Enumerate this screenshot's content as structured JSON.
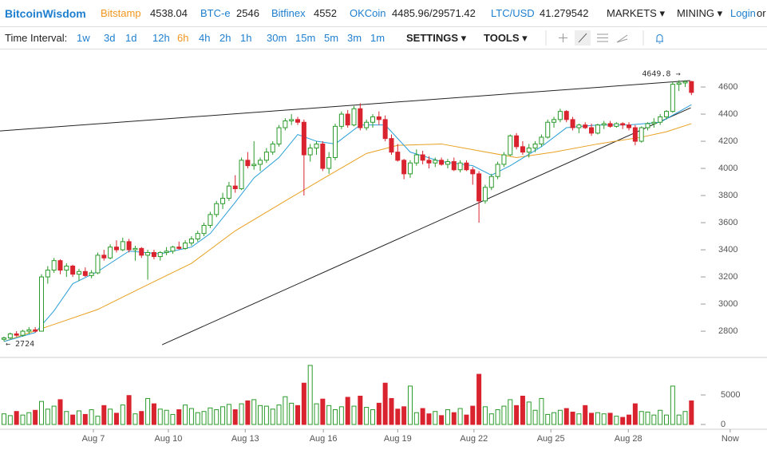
{
  "header": {
    "logo": "BitcoinWisdom",
    "markets": [
      {
        "name": "Bitstamp",
        "price": "4538.04"
      },
      {
        "name": "BTC-e",
        "price": "2546"
      },
      {
        "name": "Bitfinex",
        "price": "4552"
      },
      {
        "name": "OKCoin",
        "price": "4485.96/29571.42"
      },
      {
        "name": "LTC/USD",
        "price": "41.279542"
      }
    ],
    "menu": [
      "MARKETS",
      "MINING",
      "Login",
      "or"
    ]
  },
  "toolbar": {
    "label": "Time Interval:",
    "intervals": [
      "1w",
      "3d",
      "1d",
      "12h",
      "6h",
      "4h",
      "2h",
      "1h",
      "30m",
      "15m",
      "5m",
      "3m",
      "1m"
    ],
    "active": "6h",
    "settings": "SETTINGS",
    "tools": "TOOLS"
  },
  "chart_data": {
    "type": "candlestick",
    "up_color": "#2a9a2a",
    "down_color": "#d9232e",
    "xlim": [
      -0.64,
      122.09
    ],
    "ylim": [
      2624,
      4859
    ],
    "yticks": [
      2800,
      3000,
      3200,
      3400,
      3600,
      3800,
      4000,
      4200,
      4400,
      4600
    ],
    "xticks": [
      {
        "value": 14.3,
        "label": "Aug 7"
      },
      {
        "value": 26.3,
        "label": "Aug 10"
      },
      {
        "value": 38.6,
        "label": "Aug 13"
      },
      {
        "value": 51.1,
        "label": "Aug 16"
      },
      {
        "value": 63.0,
        "label": "Aug 19"
      },
      {
        "value": 75.2,
        "label": "Aug 22"
      },
      {
        "value": 87.5,
        "label": "Aug 25"
      },
      {
        "value": 99.9,
        "label": "Aug 28"
      },
      {
        "value": 116.2,
        "label": "Now"
      }
    ],
    "candles": [
      [
        2740,
        2760,
        2724,
        2750
      ],
      [
        2750,
        2790,
        2740,
        2780
      ],
      [
        2780,
        2800,
        2760,
        2770
      ],
      [
        2770,
        2810,
        2760,
        2800
      ],
      [
        2800,
        2830,
        2780,
        2810
      ],
      [
        2810,
        2830,
        2790,
        2800
      ],
      [
        2800,
        3220,
        2800,
        3200
      ],
      [
        3200,
        3280,
        3150,
        3250
      ],
      [
        3250,
        3340,
        3230,
        3320
      ],
      [
        3320,
        3330,
        3220,
        3250
      ],
      [
        3250,
        3300,
        3200,
        3280
      ],
      [
        3280,
        3290,
        3200,
        3220
      ],
      [
        3220,
        3260,
        3170,
        3240
      ],
      [
        3240,
        3270,
        3200,
        3210
      ],
      [
        3210,
        3250,
        3190,
        3230
      ],
      [
        3230,
        3380,
        3220,
        3360
      ],
      [
        3360,
        3400,
        3320,
        3340
      ],
      [
        3340,
        3440,
        3330,
        3420
      ],
      [
        3420,
        3470,
        3380,
        3400
      ],
      [
        3400,
        3490,
        3390,
        3460
      ],
      [
        3460,
        3480,
        3380,
        3400
      ],
      [
        3400,
        3430,
        3320,
        3410
      ],
      [
        3410,
        3420,
        3340,
        3360
      ],
      [
        3360,
        3400,
        3180,
        3380
      ],
      [
        3380,
        3400,
        3330,
        3350
      ],
      [
        3350,
        3390,
        3320,
        3380
      ],
      [
        3380,
        3420,
        3360,
        3390
      ],
      [
        3390,
        3430,
        3370,
        3420
      ],
      [
        3420,
        3460,
        3400,
        3410
      ],
      [
        3410,
        3470,
        3400,
        3450
      ],
      [
        3450,
        3500,
        3430,
        3480
      ],
      [
        3480,
        3540,
        3460,
        3520
      ],
      [
        3520,
        3600,
        3500,
        3580
      ],
      [
        3580,
        3680,
        3560,
        3660
      ],
      [
        3660,
        3760,
        3640,
        3740
      ],
      [
        3740,
        3820,
        3700,
        3780
      ],
      [
        3780,
        3900,
        3760,
        3870
      ],
      [
        3870,
        3950,
        3820,
        3850
      ],
      [
        3850,
        4080,
        3840,
        4060
      ],
      [
        4060,
        4120,
        4000,
        4020
      ],
      [
        4020,
        4200,
        3990,
        4030
      ],
      [
        4030,
        4080,
        3980,
        4060
      ],
      [
        4060,
        4150,
        4040,
        4120
      ],
      [
        4120,
        4200,
        4100,
        4180
      ],
      [
        4180,
        4320,
        4160,
        4300
      ],
      [
        4300,
        4370,
        4280,
        4350
      ],
      [
        4350,
        4400,
        4320,
        4360
      ],
      [
        4360,
        4380,
        4320,
        4340
      ],
      [
        4340,
        4360,
        3800,
        4100
      ],
      [
        4100,
        4180,
        4050,
        4150
      ],
      [
        4150,
        4200,
        4100,
        4180
      ],
      [
        4180,
        4200,
        3980,
        4000
      ],
      [
        4000,
        4120,
        3960,
        4080
      ],
      [
        4080,
        4330,
        4060,
        4310
      ],
      [
        4310,
        4420,
        4290,
        4400
      ],
      [
        4400,
        4430,
        4300,
        4320
      ],
      [
        4320,
        4460,
        4310,
        4440
      ],
      [
        4440,
        4480,
        4280,
        4300
      ],
      [
        4300,
        4360,
        4280,
        4340
      ],
      [
        4340,
        4400,
        4300,
        4380
      ],
      [
        4380,
        4420,
        4320,
        4360
      ],
      [
        4360,
        4390,
        4200,
        4220
      ],
      [
        4220,
        4250,
        4100,
        4120
      ],
      [
        4120,
        4180,
        4050,
        4060
      ],
      [
        4060,
        4070,
        3920,
        3960
      ],
      [
        3960,
        4060,
        3930,
        4040
      ],
      [
        4040,
        4140,
        4020,
        4100
      ],
      [
        4100,
        4130,
        4030,
        4060
      ],
      [
        4060,
        4090,
        4000,
        4040
      ],
      [
        4040,
        4080,
        4010,
        4060
      ],
      [
        4060,
        4080,
        4020,
        4030
      ],
      [
        4030,
        4070,
        4000,
        4050
      ],
      [
        4050,
        4080,
        3980,
        3990
      ],
      [
        3990,
        4060,
        3970,
        4040
      ],
      [
        4040,
        4060,
        3980,
        3990
      ],
      [
        3990,
        4010,
        3880,
        3960
      ],
      [
        3960,
        3980,
        3600,
        3760
      ],
      [
        3760,
        3880,
        3740,
        3860
      ],
      [
        3860,
        3960,
        3840,
        3940
      ],
      [
        3940,
        4050,
        3920,
        4030
      ],
      [
        4030,
        4120,
        4010,
        4100
      ],
      [
        4100,
        4250,
        4090,
        4240
      ],
      [
        4240,
        4260,
        4140,
        4160
      ],
      [
        4160,
        4200,
        4100,
        4120
      ],
      [
        4120,
        4180,
        4080,
        4150
      ],
      [
        4150,
        4200,
        4120,
        4180
      ],
      [
        4180,
        4250,
        4160,
        4230
      ],
      [
        4230,
        4360,
        4220,
        4340
      ],
      [
        4340,
        4380,
        4300,
        4360
      ],
      [
        4360,
        4440,
        4340,
        4420
      ],
      [
        4420,
        4430,
        4340,
        4360
      ],
      [
        4360,
        4380,
        4280,
        4300
      ],
      [
        4300,
        4330,
        4260,
        4320
      ],
      [
        4320,
        4340,
        4290,
        4300
      ],
      [
        4300,
        4330,
        4240,
        4260
      ],
      [
        4260,
        4330,
        4250,
        4320
      ],
      [
        4320,
        4350,
        4290,
        4330
      ],
      [
        4330,
        4350,
        4300,
        4310
      ],
      [
        4310,
        4340,
        4300,
        4330
      ],
      [
        4330,
        4340,
        4290,
        4320
      ],
      [
        4320,
        4340,
        4280,
        4300
      ],
      [
        4300,
        4320,
        4170,
        4200
      ],
      [
        4200,
        4310,
        4190,
        4300
      ],
      [
        4300,
        4340,
        4280,
        4330
      ],
      [
        4330,
        4370,
        4300,
        4340
      ],
      [
        4340,
        4400,
        4320,
        4380
      ],
      [
        4380,
        4430,
        4360,
        4420
      ],
      [
        4420,
        4640,
        4410,
        4620
      ],
      [
        4620,
        4650,
        4570,
        4630
      ],
      [
        4630,
        4649.8,
        4600,
        4640
      ],
      [
        4640,
        4645,
        4540,
        4560
      ]
    ],
    "volume": [
      1800,
      1500,
      2200,
      1600,
      2000,
      2400,
      3900,
      2600,
      3100,
      4200,
      2200,
      1600,
      2300,
      1700,
      2500,
      1400,
      3200,
      2600,
      1900,
      3300,
      4900,
      1800,
      2200,
      4400,
      3500,
      2600,
      2400,
      1700,
      2500,
      3300,
      2700,
      2000,
      2200,
      2800,
      2500,
      3000,
      3400,
      2500,
      3500,
      4000,
      4200,
      3200,
      3100,
      2600,
      3300,
      4700,
      3600,
      3200,
      7000,
      10000,
      3500,
      4300,
      3200,
      2500,
      3000,
      4600,
      3100,
      4800,
      2900,
      2500,
      3600,
      7000,
      4400,
      2600,
      3000,
      6500,
      2000,
      2700,
      1800,
      2200,
      1500,
      2500,
      2000,
      2700,
      1600,
      3100,
      8500,
      3000,
      1800,
      2500,
      3100,
      4200,
      3200,
      4800,
      3800,
      2400,
      4400,
      1700,
      2000,
      2400,
      2700,
      2100,
      1800,
      3200,
      1900,
      2000,
      1800,
      1900,
      1400,
      1200,
      1600,
      3500,
      2200,
      2100,
      1600,
      2400,
      1600,
      6500,
      1600,
      2200,
      4000
    ],
    "vol_ylim": [
      -676,
      10811
    ],
    "vol_yticks": [
      0,
      5000
    ],
    "ma_fast": {
      "color": "#2a9fd6",
      "x": [
        0,
        5,
        8,
        11,
        15,
        20,
        25,
        30,
        33,
        37,
        40,
        44,
        47,
        50,
        53,
        57,
        61,
        65,
        70,
        75,
        78,
        81,
        86,
        90,
        95,
        100,
        105,
        110
      ],
      "y": [
        2724,
        2790,
        2950,
        3150,
        3240,
        3390,
        3370,
        3420,
        3520,
        3750,
        3930,
        4080,
        4250,
        4200,
        4180,
        4320,
        4320,
        4120,
        4050,
        4020,
        3950,
        4020,
        4160,
        4300,
        4320,
        4320,
        4340,
        4470
      ]
    },
    "ma_slow": {
      "color": "#e8a020",
      "x": [
        0,
        8,
        15,
        22,
        30,
        37,
        45,
        52,
        58,
        63,
        70,
        76,
        82,
        88,
        95,
        102,
        106,
        110
      ],
      "y": [
        2724,
        2850,
        2960,
        3120,
        3300,
        3540,
        3760,
        3950,
        4110,
        4170,
        4180,
        4130,
        4080,
        4120,
        4180,
        4230,
        4270,
        4330
      ]
    },
    "trendlines": [
      {
        "x": [
          -0.64,
          109.8
        ],
        "y": [
          4276,
          4647
        ]
      },
      {
        "x": [
          25.3,
          109.9
        ],
        "y": [
          2700,
          4447
        ]
      }
    ],
    "annotations": [
      {
        "text": "4649.8 →",
        "x": 109,
        "y": 4649.8
      },
      {
        "text": "← 2724",
        "x": 0,
        "y": 2724
      }
    ]
  }
}
